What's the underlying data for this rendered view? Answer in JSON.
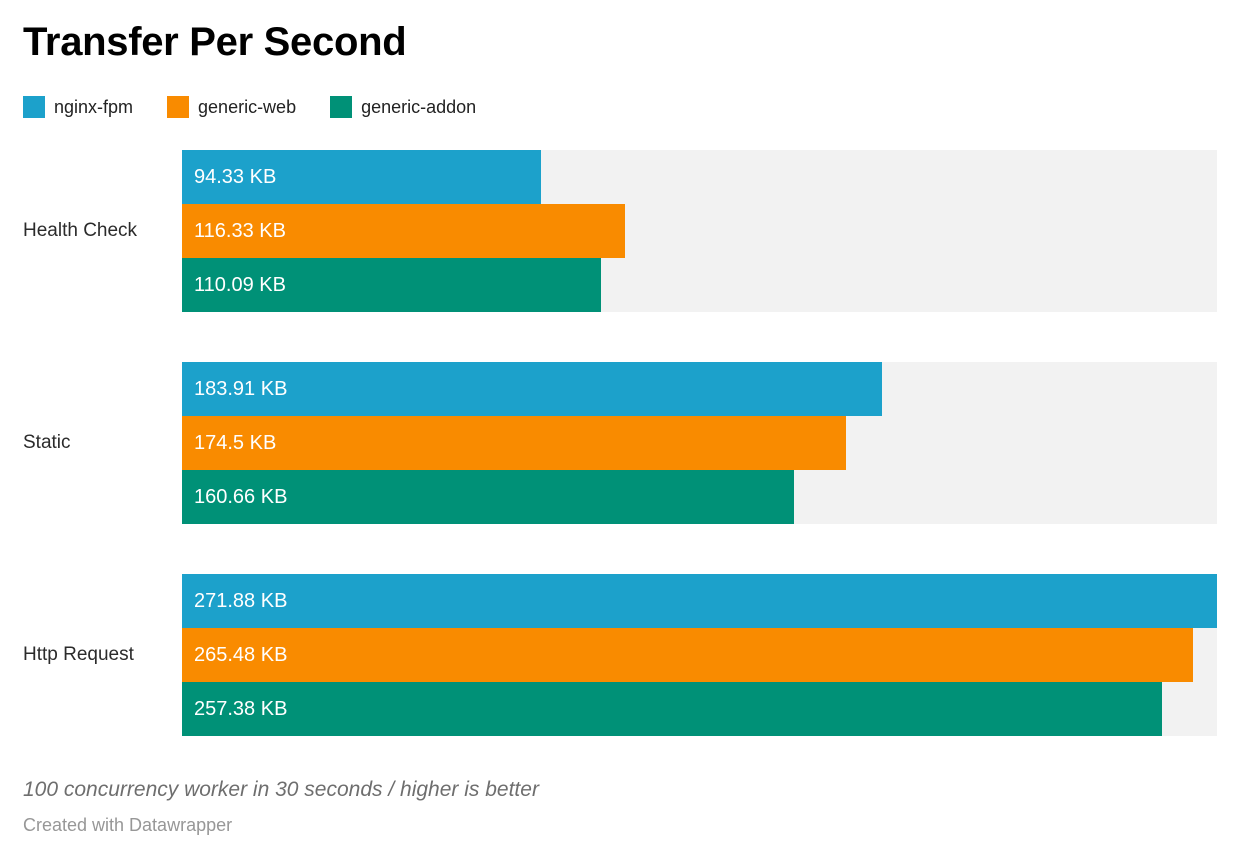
{
  "header": {
    "title": "Transfer Per Second"
  },
  "legend": {
    "items": [
      {
        "label": "nginx-fpm",
        "color": "#1CA1CB"
      },
      {
        "label": "generic-web",
        "color": "#F98B00"
      },
      {
        "label": "generic-addon",
        "color": "#009177"
      }
    ]
  },
  "chart_data": {
    "type": "bar",
    "orientation": "horizontal",
    "title": "Transfer Per Second",
    "unit": "KB",
    "categories": [
      "Health Check",
      "Static",
      "Http Request"
    ],
    "series": [
      {
        "name": "nginx-fpm",
        "color": "#1CA1CB",
        "values": [
          94.33,
          183.91,
          271.88
        ],
        "value_labels": [
          "94.33 KB",
          "183.91 KB",
          "271.88 KB"
        ]
      },
      {
        "name": "generic-web",
        "color": "#F98B00",
        "values": [
          116.33,
          174.5,
          265.48
        ],
        "value_labels": [
          "116.33 KB",
          "174.5 KB",
          "265.48 KB"
        ]
      },
      {
        "name": "generic-addon",
        "color": "#009177",
        "values": [
          110.09,
          160.66,
          257.38
        ],
        "value_labels": [
          "110.09 KB",
          "160.66 KB",
          "257.38 KB"
        ]
      }
    ],
    "xlim": [
      0,
      271.88
    ],
    "grid": false,
    "legend_position": "top",
    "track_color": "#F2F2F2",
    "value_labels_inside": true
  },
  "footer": {
    "note": "100 concurrency worker in 30 seconds / higher is better",
    "credit": "Created with Datawrapper"
  }
}
